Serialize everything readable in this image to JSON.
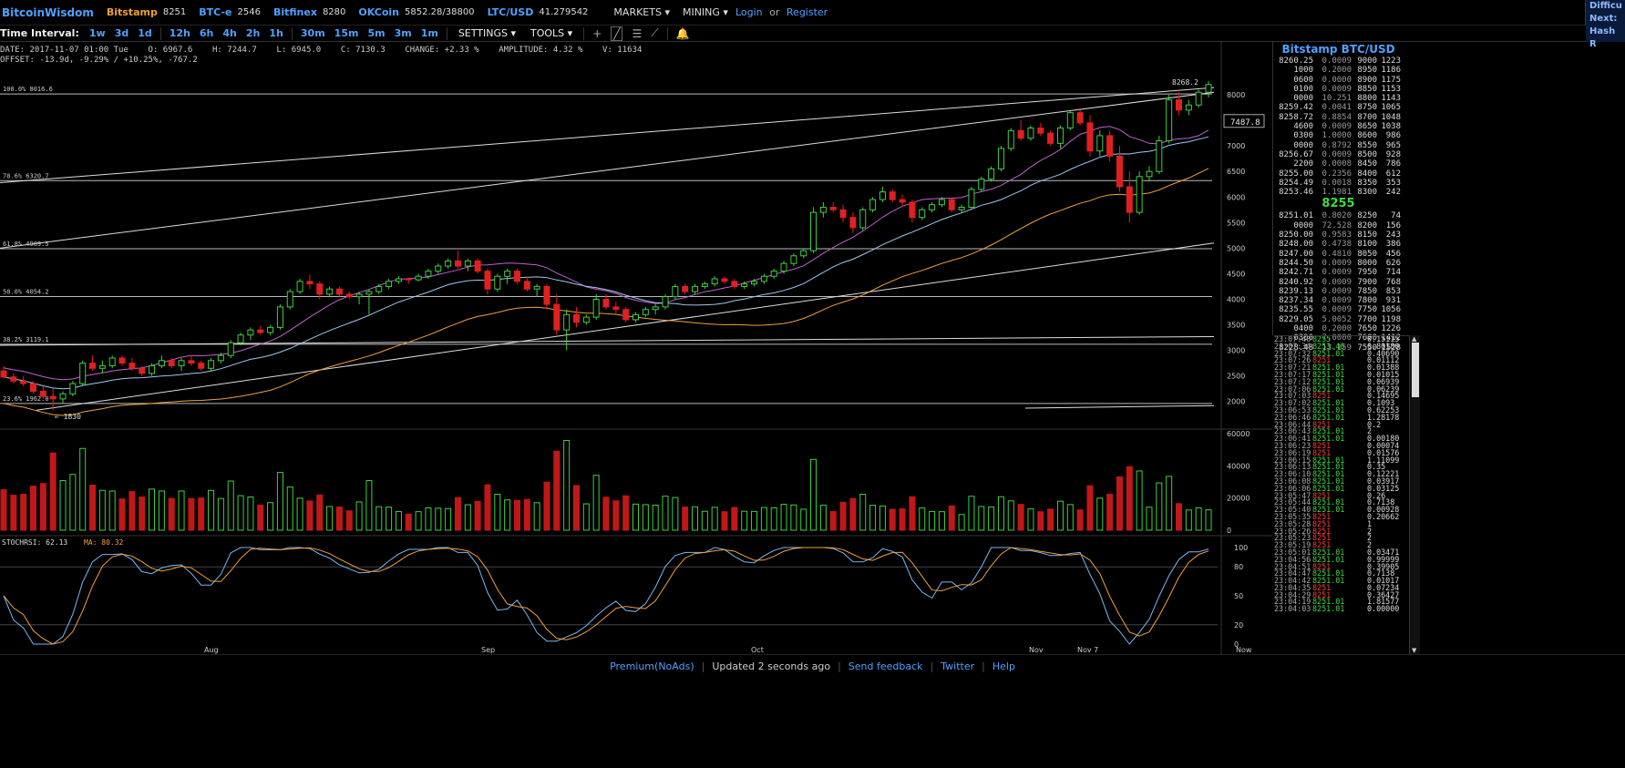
{
  "topbar": {
    "brand": "BitcoinWisdom",
    "exchanges": [
      {
        "name": "Bitstamp",
        "value": "8251",
        "color": "orange"
      },
      {
        "name": "BTC-e",
        "value": "2546",
        "color": "blue"
      },
      {
        "name": "Bitfinex",
        "value": "8280",
        "color": "blue"
      },
      {
        "name": "OKCoin",
        "value": "5852.28/38800",
        "color": "blue"
      },
      {
        "name": "LTC/USD",
        "value": "41.279542",
        "color": "blue"
      }
    ],
    "markets_label": "MARKETS ▾",
    "mining_label": "MINING ▾",
    "login_label": "Login",
    "or_label": "or",
    "register_label": "Register",
    "difficulty_lines": [
      "Difficu",
      "Next:",
      "Hash R"
    ]
  },
  "toolbar": {
    "interval_label": "Time Interval:",
    "intervals": [
      "1w",
      "3d",
      "1d",
      "12h",
      "6h",
      "4h",
      "2h",
      "1h",
      "30m",
      "15m",
      "5m",
      "3m",
      "1m"
    ],
    "settings_label": "SETTINGS ▾",
    "tools_label": "TOOLS ▾"
  },
  "info": {
    "line1": "DATE: 2017-11-07 01:00 Tue    O: 6967.6    H: 7244.7    L: 6945.0    C: 7130.3    CHANGE: +2.33 %    AMPLITUDE: 4.32 %    V: 11634",
    "line2": "OFFSET: -13.9d, -9.29% / +10.25%, -767.2"
  },
  "chart_data": {
    "type": "candlestick",
    "x_labels": [
      "Aug",
      "Sep",
      "Oct",
      "Nov",
      "Nov 7",
      "Now"
    ],
    "price_axis": [
      8000,
      7500,
      7000,
      6500,
      6000,
      5500,
      5000,
      4500,
      4000,
      3500,
      3000,
      2500,
      2000
    ],
    "volume_axis": [
      60000,
      40000,
      20000,
      0
    ],
    "stoch_axis": [
      100,
      80,
      50,
      20,
      0
    ],
    "fib_levels": [
      {
        "label": "100.0% 8016.6",
        "value": 8016.6
      },
      {
        "label": "78.6% 6320.7",
        "value": 6320.7
      },
      {
        "label": "61.8% 4989.5",
        "value": 4989.5
      },
      {
        "label": "50.0% 4054.2",
        "value": 4054.2
      },
      {
        "label": "38.2% 3119.1",
        "value": 3119.1
      },
      {
        "label": "23.6% 1962.0",
        "value": 1962.0
      }
    ],
    "high_label": "8268.2",
    "low_label": "← 1830",
    "current_price_tag": "7487.8",
    "stoch_label": "STOCHRSI: 62.13",
    "ma_label": "MA: 80.32",
    "candles": [
      [
        2600,
        2700,
        2450,
        2480
      ],
      [
        2480,
        2550,
        2350,
        2400
      ],
      [
        2400,
        2500,
        2300,
        2350
      ],
      [
        2350,
        2400,
        2150,
        2200
      ],
      [
        2200,
        2300,
        2050,
        2100
      ],
      [
        2100,
        2250,
        1830,
        2050
      ],
      [
        2050,
        2200,
        1950,
        2150
      ],
      [
        2150,
        2400,
        2100,
        2350
      ],
      [
        2350,
        2800,
        2300,
        2750
      ],
      [
        2750,
        2900,
        2600,
        2650
      ],
      [
        2650,
        2800,
        2550,
        2700
      ],
      [
        2700,
        2900,
        2650,
        2850
      ],
      [
        2850,
        2900,
        2700,
        2750
      ],
      [
        2750,
        2850,
        2600,
        2650
      ],
      [
        2650,
        2700,
        2500,
        2550
      ],
      [
        2550,
        2750,
        2500,
        2700
      ],
      [
        2700,
        2900,
        2650,
        2800
      ],
      [
        2800,
        2850,
        2650,
        2700
      ],
      [
        2700,
        2850,
        2600,
        2800
      ],
      [
        2800,
        2900,
        2700,
        2750
      ],
      [
        2750,
        2800,
        2600,
        2650
      ],
      [
        2650,
        2850,
        2600,
        2800
      ],
      [
        2800,
        2950,
        2750,
        2900
      ],
      [
        2900,
        3200,
        2850,
        3150
      ],
      [
        3150,
        3350,
        3100,
        3300
      ],
      [
        3300,
        3450,
        3200,
        3400
      ],
      [
        3400,
        3480,
        3300,
        3350
      ],
      [
        3350,
        3500,
        3300,
        3450
      ],
      [
        3450,
        3900,
        3400,
        3850
      ],
      [
        3850,
        4200,
        3800,
        4150
      ],
      [
        4150,
        4400,
        4100,
        4350
      ],
      [
        4350,
        4480,
        4200,
        4300
      ],
      [
        4300,
        4350,
        4000,
        4100
      ],
      [
        4100,
        4250,
        4050,
        4200
      ],
      [
        4200,
        4250,
        4050,
        4100
      ],
      [
        4100,
        4150,
        4000,
        4050
      ],
      [
        4050,
        4150,
        3900,
        4100
      ],
      [
        4100,
        4200,
        3700,
        4150
      ],
      [
        4150,
        4300,
        4100,
        4250
      ],
      [
        4250,
        4400,
        4200,
        4350
      ],
      [
        4350,
        4450,
        4300,
        4400
      ],
      [
        4400,
        4420,
        4300,
        4380
      ],
      [
        4380,
        4500,
        4350,
        4450
      ],
      [
        4450,
        4600,
        4400,
        4550
      ],
      [
        4550,
        4700,
        4500,
        4650
      ],
      [
        4650,
        4800,
        4600,
        4750
      ],
      [
        4750,
        4950,
        4600,
        4650
      ],
      [
        4650,
        4800,
        4550,
        4750
      ],
      [
        4750,
        4800,
        4500,
        4550
      ],
      [
        4550,
        4600,
        4100,
        4200
      ],
      [
        4200,
        4500,
        4150,
        4450
      ],
      [
        4450,
        4600,
        4300,
        4550
      ],
      [
        4550,
        4600,
        4300,
        4350
      ],
      [
        4350,
        4450,
        4150,
        4200
      ],
      [
        4200,
        4300,
        4050,
        4250
      ],
      [
        4250,
        4300,
        3800,
        3900
      ],
      [
        3900,
        4100,
        3300,
        3400
      ],
      [
        3400,
        3800,
        3000,
        3700
      ],
      [
        3700,
        3850,
        3450,
        3550
      ],
      [
        3550,
        3700,
        3500,
        3650
      ],
      [
        3650,
        4100,
        3600,
        4000
      ],
      [
        4000,
        4100,
        3800,
        3850
      ],
      [
        3850,
        3950,
        3700,
        3800
      ],
      [
        3800,
        3850,
        3550,
        3600
      ],
      [
        3600,
        3750,
        3550,
        3700
      ],
      [
        3700,
        3850,
        3650,
        3800
      ],
      [
        3800,
        3900,
        3700,
        3850
      ],
      [
        3850,
        4100,
        3800,
        4050
      ],
      [
        4050,
        4300,
        4000,
        4250
      ],
      [
        4250,
        4300,
        4100,
        4150
      ],
      [
        4150,
        4300,
        4100,
        4250
      ],
      [
        4250,
        4350,
        4200,
        4300
      ],
      [
        4300,
        4450,
        4250,
        4400
      ],
      [
        4400,
        4450,
        4300,
        4350
      ],
      [
        4350,
        4400,
        4200,
        4250
      ],
      [
        4250,
        4350,
        4200,
        4300
      ],
      [
        4300,
        4400,
        4250,
        4350
      ],
      [
        4350,
        4500,
        4300,
        4450
      ],
      [
        4450,
        4600,
        4400,
        4550
      ],
      [
        4550,
        4750,
        4500,
        4700
      ],
      [
        4700,
        4900,
        4650,
        4850
      ],
      [
        4850,
        5000,
        4800,
        4950
      ],
      [
        4950,
        5800,
        4900,
        5700
      ],
      [
        5700,
        5900,
        5600,
        5800
      ],
      [
        5800,
        5900,
        5700,
        5750
      ],
      [
        5750,
        5850,
        5500,
        5600
      ],
      [
        5600,
        5700,
        5300,
        5400
      ],
      [
        5400,
        5800,
        5350,
        5750
      ],
      [
        5750,
        6000,
        5700,
        5950
      ],
      [
        5950,
        6200,
        5900,
        6100
      ],
      [
        6100,
        6150,
        5900,
        5950
      ],
      [
        5950,
        6050,
        5800,
        5900
      ],
      [
        5900,
        5950,
        5500,
        5600
      ],
      [
        5600,
        5800,
        5550,
        5750
      ],
      [
        5750,
        5900,
        5700,
        5850
      ],
      [
        5850,
        6000,
        5800,
        5950
      ],
      [
        5950,
        6000,
        5700,
        5750
      ],
      [
        5750,
        5850,
        5700,
        5800
      ],
      [
        5800,
        6200,
        5750,
        6150
      ],
      [
        6150,
        6400,
        6100,
        6350
      ],
      [
        6350,
        6600,
        6300,
        6550
      ],
      [
        6550,
        7000,
        6500,
        6950
      ],
      [
        6950,
        7350,
        6900,
        7300
      ],
      [
        7300,
        7500,
        7100,
        7150
      ],
      [
        7150,
        7400,
        7100,
        7350
      ],
      [
        7350,
        7450,
        7200,
        7250
      ],
      [
        7250,
        7300,
        7000,
        7050
      ],
      [
        7050,
        7400,
        6950,
        7350
      ],
      [
        7350,
        7700,
        7300,
        7650
      ],
      [
        7650,
        7700,
        7400,
        7450
      ],
      [
        7450,
        7600,
        6800,
        6900
      ],
      [
        6900,
        7300,
        6800,
        7200
      ],
      [
        7200,
        7300,
        6700,
        6800
      ],
      [
        6800,
        7000,
        6100,
        6200
      ],
      [
        6200,
        6500,
        5500,
        5700
      ],
      [
        5700,
        6500,
        5650,
        6400
      ],
      [
        6400,
        6600,
        6300,
        6500
      ],
      [
        6500,
        7200,
        6450,
        7100
      ],
      [
        7100,
        8000,
        7050,
        7900
      ],
      [
        7900,
        8050,
        7600,
        7700
      ],
      [
        7700,
        7900,
        7600,
        7800
      ],
      [
        7800,
        8100,
        7750,
        8050
      ],
      [
        8050,
        8268,
        7950,
        8200
      ]
    ]
  },
  "orderbook": {
    "title": "Bitstamp BTC/USD",
    "asks": [
      [
        "8260.25",
        "0.0009",
        "9000",
        "1223"
      ],
      [
        "1000",
        "0.2000",
        "8950",
        "1186"
      ],
      [
        "0600",
        "0.0000",
        "8900",
        "1175"
      ],
      [
        "0100",
        "0.0009",
        "8850",
        "1153"
      ],
      [
        "0000",
        "10.251",
        "8800",
        "1143"
      ],
      [
        "8259.42",
        "0.0041",
        "8750",
        "1065"
      ],
      [
        "8258.72",
        "0.8854",
        "8700",
        "1048"
      ],
      [
        "4600",
        "0.0009",
        "8650",
        "1038"
      ],
      [
        "0300",
        "1.0000",
        "8600",
        "986"
      ],
      [
        "0000",
        "0.8792",
        "8550",
        "965"
      ],
      [
        "8256.67",
        "0.0009",
        "8500",
        "928"
      ],
      [
        "2200",
        "0.0008",
        "8450",
        "786"
      ],
      [
        "8255.00",
        "0.2356",
        "8400",
        "612"
      ],
      [
        "8254.49",
        "0.0018",
        "8350",
        "353"
      ],
      [
        "8253.46",
        "1.1981",
        "8300",
        "242"
      ]
    ],
    "last_price": "8255",
    "bids": [
      [
        "8251.01",
        "0.8020",
        "8250",
        "74"
      ],
      [
        "0000",
        "72.528",
        "8200",
        "156"
      ],
      [
        "8250.00",
        "0.9583",
        "8150",
        "243"
      ],
      [
        "8248.00",
        "0.4738",
        "8100",
        "386"
      ],
      [
        "8247.00",
        "0.4810",
        "8050",
        "456"
      ],
      [
        "8244.50",
        "0.0009",
        "8000",
        "626"
      ],
      [
        "8242.71",
        "0.0009",
        "7950",
        "714"
      ],
      [
        "8240.92",
        "0.0009",
        "7900",
        "768"
      ],
      [
        "8239.13",
        "0.0009",
        "7850",
        "853"
      ],
      [
        "8237.34",
        "0.0009",
        "7800",
        "931"
      ],
      [
        "8235.55",
        "0.0009",
        "7750",
        "1056"
      ],
      [
        "8229.05",
        "5.0052",
        "7700",
        "1198"
      ],
      [
        "0400",
        "0.2000",
        "7650",
        "1226"
      ],
      [
        "0300",
        "7.0000",
        "7600",
        "1412"
      ],
      [
        "8228.48",
        "13.159",
        "7550",
        "1528"
      ]
    ]
  },
  "trades": [
    [
      "23:07:40",
      "8255",
      "g",
      "0.15115"
    ],
    [
      "23:07:34",
      "8253.46",
      "g",
      "0.80180"
    ],
    [
      "23:07:32",
      "8251.01",
      "g",
      "0.40690"
    ],
    [
      "23:07:26",
      "8251",
      "r",
      "0.01112"
    ],
    [
      "23:07:21",
      "8251.01",
      "g",
      "0.01388"
    ],
    [
      "23:07:17",
      "8251.01",
      "g",
      "0.01015"
    ],
    [
      "23:07:12",
      "8251.01",
      "g",
      "0.06939"
    ],
    [
      "23:07:06",
      "8251.01",
      "g",
      "0.06239"
    ],
    [
      "23:07:03",
      "8251",
      "r",
      "0.14695"
    ],
    [
      "23:07:02",
      "8251.01",
      "g",
      "0.1093"
    ],
    [
      "23:06:53",
      "8251.01",
      "g",
      "0.62253"
    ],
    [
      "23:06:46",
      "8251.01",
      "g",
      "1.28178"
    ],
    [
      "23:06:44",
      "8251",
      "r",
      "0.2"
    ],
    [
      "23:06:43",
      "8251.01",
      "g",
      "2"
    ],
    [
      "23:06:41",
      "8251.01",
      "g",
      "0.00180"
    ],
    [
      "23:06:23",
      "8251",
      "r",
      "0.00074"
    ],
    [
      "23:06:19",
      "8251",
      "r",
      "0.01576"
    ],
    [
      "23:06:15",
      "8251.01",
      "g",
      "1.11099"
    ],
    [
      "23:06:13",
      "8251.01",
      "g",
      "0.35"
    ],
    [
      "23:06:10",
      "8251.01",
      "g",
      "0.12221"
    ],
    [
      "23:06:08",
      "8251.01",
      "g",
      "0.03917"
    ],
    [
      "23:06:06",
      "8251.01",
      "g",
      "0.03125"
    ],
    [
      "23:05:47",
      "8251",
      "r",
      "0.26"
    ],
    [
      "23:05:44",
      "8251.01",
      "g",
      "0.7138"
    ],
    [
      "23:05:40",
      "8251.01",
      "g",
      "0.00928"
    ],
    [
      "23:05:35",
      "8251",
      "r",
      "0.20662"
    ],
    [
      "23:05:28",
      "8251",
      "r",
      "1"
    ],
    [
      "23:05:26",
      "8251",
      "r",
      "2"
    ],
    [
      "23:05:23",
      "8251",
      "r",
      "2"
    ],
    [
      "23:05:19",
      "8251",
      "r",
      "2"
    ],
    [
      "23:05:01",
      "8251.01",
      "g",
      "0.03471"
    ],
    [
      "23:04:56",
      "8251.01",
      "g",
      "0.99999"
    ],
    [
      "23:04:51",
      "8251",
      "r",
      "0.39905"
    ],
    [
      "23:04:47",
      "8251.01",
      "g",
      "0.7138"
    ],
    [
      "23:04:42",
      "8251.01",
      "g",
      "0.01017"
    ],
    [
      "23:04:35",
      "8251",
      "r",
      "0.07234"
    ],
    [
      "23:04:29",
      "8251",
      "r",
      "0.36427"
    ],
    [
      "23:04:19",
      "8251.01",
      "g",
      "1.81577"
    ],
    [
      "23:04:03",
      "8251.01",
      "g",
      "0.00000"
    ]
  ],
  "footer": {
    "links": [
      "Premium(NoAds)",
      "Send feedback",
      "Twitter",
      "Help"
    ],
    "status": "Updated 2 seconds ago"
  }
}
